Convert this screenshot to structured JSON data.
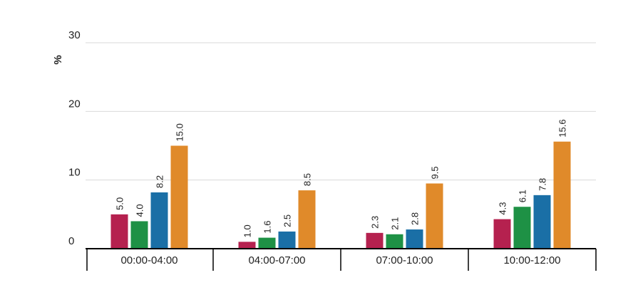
{
  "chart_data": {
    "type": "bar",
    "ylabel": "%",
    "ylim": [
      0,
      30
    ],
    "yticks": [
      "0",
      "10",
      "20",
      "30"
    ],
    "grid": true,
    "categories": [
      "00:00-04:00",
      "04:00-07:00",
      "07:00-10:00",
      "10:00-12:00"
    ],
    "series": [
      {
        "values": [
          5.0,
          1.0,
          2.3,
          4.3
        ],
        "labels": [
          "5.0",
          "1.0",
          "2.3",
          "4.3"
        ],
        "color": "#b5214f"
      },
      {
        "values": [
          4.0,
          1.6,
          2.1,
          6.1
        ],
        "labels": [
          "4.0",
          "1.6",
          "2.1",
          "6.1"
        ],
        "color": "#1e9145"
      },
      {
        "values": [
          8.2,
          2.5,
          2.8,
          7.8
        ],
        "labels": [
          "8.2",
          "2.5",
          "2.8",
          "7.8"
        ],
        "color": "#1a6fa6"
      },
      {
        "values": [
          15.0,
          8.5,
          9.5,
          15.6
        ],
        "labels": [
          "15.0",
          "8.5",
          "9.5",
          "15.6"
        ],
        "color": "#e08a2a"
      }
    ]
  }
}
